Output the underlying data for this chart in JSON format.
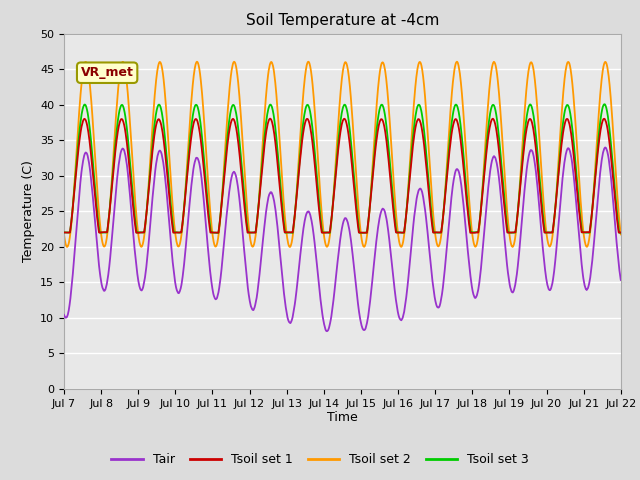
{
  "title": "Soil Temperature at -4cm",
  "xlabel": "Time",
  "ylabel": "Temperature (C)",
  "ylim": [
    0,
    50
  ],
  "yticks": [
    0,
    5,
    10,
    15,
    20,
    25,
    30,
    35,
    40,
    45,
    50
  ],
  "xtick_labels": [
    "Jul 7",
    "Jul 8",
    "Jul 9",
    "Jul 10",
    "Jul 11",
    "Jul 12",
    "Jul 13",
    "Jul 14",
    "Jul 15",
    "Jul 16",
    "Jul 17",
    "Jul 18",
    "Jul 19",
    "Jul 20",
    "Jul 21",
    "Jul 22"
  ],
  "color_tair": "#9933CC",
  "color_tsoil1": "#CC0000",
  "color_tsoil2": "#FF9900",
  "color_tsoil3": "#00CC00",
  "fig_bg": "#DCDCDC",
  "ax_bg": "#E8E8E8",
  "legend_label_tair": "Tair",
  "legend_label_tsoil1": "Tsoil set 1",
  "legend_label_tsoil2": "Tsoil set 2",
  "legend_label_tsoil3": "Tsoil set 3",
  "annotation_text": "VR_met"
}
